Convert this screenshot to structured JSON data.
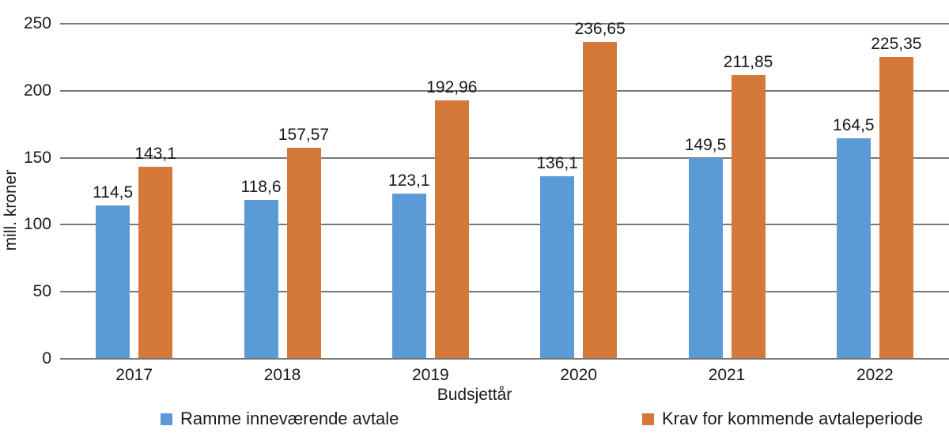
{
  "chart_data": {
    "type": "bar",
    "title": "",
    "xlabel": "Budsjettår",
    "ylabel": "mill. kroner",
    "categories": [
      "2017",
      "2018",
      "2019",
      "2020",
      "2021",
      "2022"
    ],
    "series": [
      {
        "name": "Ramme inneværende avtale",
        "color": "#5B9BD5",
        "values": [
          114.5,
          118.6,
          123.1,
          136.1,
          149.5,
          164.5
        ],
        "labels": [
          "114,5",
          "118,6",
          "123,1",
          "136,1",
          "149,5",
          "164,5"
        ]
      },
      {
        "name": "Krav for kommende avtaleperiode",
        "color": "#D5793A",
        "values": [
          143.1,
          157.57,
          192.96,
          236.65,
          211.85,
          225.35
        ],
        "labels": [
          "143,1",
          "157,57",
          "192,96",
          "236,65",
          "211,85",
          "225,35"
        ]
      }
    ],
    "ylim": [
      0,
      250
    ],
    "yticks": [
      0,
      50,
      100,
      150,
      200,
      250
    ],
    "grid": "horizontal",
    "legend_position": "bottom",
    "gridline_color": "#787878",
    "text_color": "#1A1A1A",
    "background_color": "#FFFFFF"
  }
}
